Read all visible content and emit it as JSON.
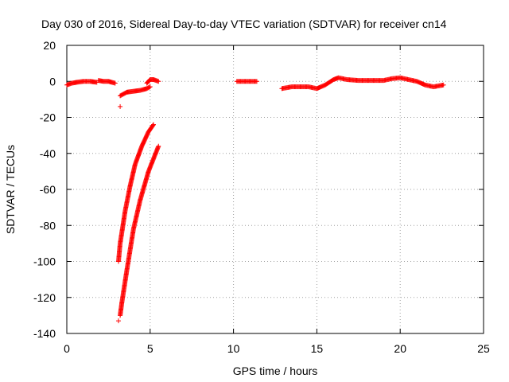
{
  "chart_data": {
    "type": "scatter",
    "title": "Day 030 of 2016, Sidereal Day-to-day VTEC variation (SDTVAR) for receiver cn14",
    "xlabel": "GPS time / hours",
    "ylabel": "SDTVAR / TECUs",
    "xlim": [
      0,
      25
    ],
    "ylim": [
      -140,
      20
    ],
    "x_ticks": [
      0,
      5,
      10,
      15,
      20,
      25
    ],
    "y_ticks": [
      20,
      0,
      -20,
      -40,
      -60,
      -80,
      -100,
      -120,
      -140
    ],
    "x_tick_labels": [
      "0",
      "5",
      "10",
      "15",
      "20",
      "25"
    ],
    "y_tick_labels": [
      "20",
      "0",
      "-20",
      "-40",
      "-60",
      "-80",
      "-100",
      "-120",
      "-140"
    ],
    "grid": true,
    "marker": "plus",
    "color": "#ff0000",
    "segments": [
      {
        "x": [
          0.0,
          0.3,
          0.6,
          1.0,
          1.4,
          1.8
        ],
        "y": [
          -2,
          -1,
          -0.5,
          0,
          0,
          -0.5
        ]
      },
      {
        "x": [
          1.9,
          2.2,
          2.5,
          2.9
        ],
        "y": [
          0.5,
          0,
          0,
          -1
        ]
      },
      {
        "x": [
          3.2,
          3.4,
          3.6,
          4.0,
          4.4,
          4.8,
          5.0
        ],
        "y": [
          -8,
          -7,
          -6,
          -5.5,
          -5,
          -4,
          -3
        ]
      },
      {
        "x": [
          4.8,
          5.0,
          5.2,
          5.5
        ],
        "y": [
          -1,
          1,
          1,
          0
        ]
      },
      {
        "x": [
          3.1,
          3.2,
          3.5,
          3.8,
          4.1,
          4.5,
          4.9,
          5.2
        ],
        "y": [
          -100,
          -90,
          -72,
          -58,
          -46,
          -36,
          -28,
          -24
        ]
      },
      {
        "x": [
          3.2,
          3.3,
          3.6,
          4.0,
          4.4,
          4.9,
          5.5
        ],
        "y": [
          -130,
          -123,
          -105,
          -82,
          -66,
          -50,
          -36
        ]
      },
      {
        "x": [
          10.2,
          10.6,
          11.0,
          11.4
        ],
        "y": [
          0,
          0,
          0,
          0
        ]
      },
      {
        "x": [
          12.9,
          13.5,
          14.0,
          14.5,
          15.0,
          15.5,
          16.0,
          16.3,
          16.8,
          17.5,
          18.0,
          18.5,
          19.0,
          19.5,
          20.0,
          20.5,
          21.0,
          21.5,
          22.0,
          22.6
        ],
        "y": [
          -4,
          -3,
          -3,
          -3,
          -4,
          -2,
          1,
          2,
          1,
          0.5,
          0.5,
          0.5,
          0.5,
          1.5,
          2,
          1,
          0,
          -2,
          -3,
          -2
        ]
      }
    ],
    "isolated_points": [
      {
        "x": 3.2,
        "y": -14
      },
      {
        "x": 3.1,
        "y": -133
      }
    ]
  }
}
